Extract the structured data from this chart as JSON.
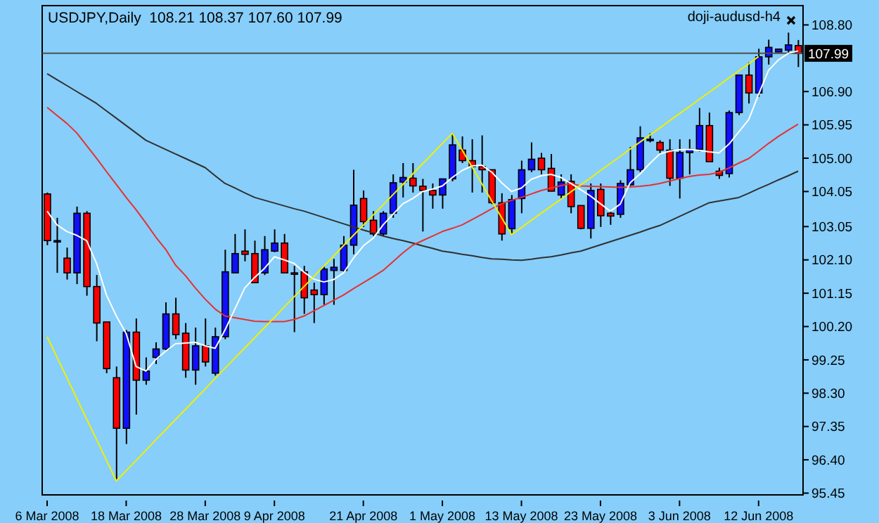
{
  "chart_data": {
    "type": "candlestick",
    "title": "USDJPY,Daily  108.21 108.37 107.60 107.99",
    "annotations": [
      "doji-audusd-h4"
    ],
    "categories": [
      "6 Mar 2008",
      null,
      null,
      null,
      null,
      null,
      null,
      null,
      "18 Mar 2008",
      null,
      null,
      null,
      null,
      null,
      null,
      null,
      "28 Mar 2008",
      null,
      null,
      null,
      null,
      null,
      null,
      "9 Apr 2008",
      null,
      null,
      null,
      null,
      null,
      null,
      null,
      null,
      "21 Apr 2008",
      null,
      null,
      null,
      null,
      null,
      null,
      null,
      "1 May 2008",
      null,
      null,
      null,
      null,
      null,
      null,
      null,
      "13 May 2008",
      null,
      null,
      null,
      null,
      null,
      null,
      null,
      "23 May 2008",
      null,
      null,
      null,
      null,
      null,
      null,
      null,
      "3 Jun 2008",
      null,
      null,
      null,
      null,
      null,
      null,
      null,
      "12 Jun 2008",
      null,
      null,
      null,
      null
    ],
    "ohlc": [
      [
        103.98,
        104.02,
        102.52,
        102.65
      ],
      [
        102.65,
        103.3,
        101.73,
        102.65
      ],
      [
        102.15,
        102.45,
        101.54,
        101.73
      ],
      [
        101.73,
        103.62,
        101.41,
        103.43
      ],
      [
        103.43,
        103.49,
        101.08,
        101.34
      ],
      [
        101.34,
        101.67,
        99.78,
        100.3
      ],
      [
        100.33,
        100.33,
        98.87,
        99.0
      ],
      [
        98.74,
        99.06,
        95.8,
        97.3
      ],
      [
        97.3,
        100.1,
        96.85,
        100.04
      ],
      [
        100.04,
        100.43,
        97.69,
        98.67
      ],
      [
        98.67,
        99.32,
        98.54,
        98.93
      ],
      [
        99.32,
        99.75,
        99.13,
        99.56
      ],
      [
        99.56,
        100.89,
        99.52,
        100.56
      ],
      [
        100.56,
        101.02,
        99.84,
        99.97
      ],
      [
        100.01,
        100.3,
        98.74,
        98.96
      ],
      [
        98.96,
        100.17,
        98.54,
        99.65
      ],
      [
        99.65,
        100.43,
        99.06,
        99.19
      ],
      [
        98.87,
        100.17,
        98.8,
        99.91
      ],
      [
        99.91,
        102.39,
        99.84,
        101.76
      ],
      [
        101.73,
        102.84,
        101.73,
        102.28
      ],
      [
        102.35,
        102.97,
        102.06,
        102.26
      ],
      [
        102.28,
        102.65,
        101.45,
        101.45
      ],
      [
        101.73,
        102.78,
        101.67,
        102.39
      ],
      [
        102.35,
        102.97,
        102.32,
        102.58
      ],
      [
        102.58,
        102.84,
        101.73,
        101.73
      ],
      [
        101.73,
        101.93,
        100.04,
        101.71
      ],
      [
        101.76,
        101.93,
        100.56,
        101.02
      ],
      [
        101.24,
        101.45,
        100.3,
        101.11
      ],
      [
        101.11,
        101.93,
        100.82,
        101.84
      ],
      [
        101.8,
        102.13,
        100.82,
        101.89
      ],
      [
        101.8,
        102.78,
        101.73,
        102.52
      ],
      [
        102.52,
        104.67,
        102.26,
        103.66
      ],
      [
        103.85,
        104.08,
        103.04,
        103.19
      ],
      [
        103.23,
        103.49,
        102.78,
        102.84
      ],
      [
        102.84,
        103.49,
        102.78,
        103.43
      ],
      [
        103.43,
        104.54,
        103.3,
        104.3
      ],
      [
        104.32,
        104.86,
        103.88,
        104.45
      ],
      [
        104.43,
        104.86,
        104.02,
        104.21
      ],
      [
        104.2,
        104.41,
        102.91,
        104.08
      ],
      [
        104.08,
        104.28,
        103.56,
        103.95
      ],
      [
        103.95,
        104.41,
        103.56,
        104.41
      ],
      [
        104.41,
        105.71,
        104.34,
        105.38
      ],
      [
        105.23,
        105.62,
        104.86,
        104.93
      ],
      [
        104.93,
        105.54,
        104.02,
        104.76
      ],
      [
        104.76,
        105.65,
        104.02,
        104.67
      ],
      [
        104.67,
        104.67,
        103.69,
        103.73
      ],
      [
        103.73,
        104.0,
        102.65,
        102.84
      ],
      [
        102.99,
        103.95,
        102.84,
        103.82
      ],
      [
        103.85,
        104.93,
        103.43,
        104.67
      ],
      [
        104.67,
        105.45,
        104.6,
        104.97
      ],
      [
        105.0,
        105.15,
        104.54,
        104.67
      ],
      [
        104.71,
        105.12,
        104.06,
        104.06
      ],
      [
        103.95,
        104.54,
        103.82,
        104.32
      ],
      [
        104.34,
        104.54,
        103.43,
        103.62
      ],
      [
        103.65,
        103.65,
        102.97,
        103.0
      ],
      [
        103.0,
        104.28,
        102.71,
        104.08
      ],
      [
        104.11,
        104.28,
        103.04,
        103.36
      ],
      [
        103.43,
        103.49,
        103.1,
        103.35
      ],
      [
        103.4,
        104.37,
        103.3,
        104.28
      ],
      [
        104.24,
        105.32,
        104.21,
        104.67
      ],
      [
        104.67,
        105.91,
        104.6,
        105.58
      ],
      [
        105.51,
        105.71,
        105.45,
        105.54
      ],
      [
        105.45,
        105.51,
        105.12,
        105.23
      ],
      [
        105.23,
        105.54,
        104.21,
        104.43
      ],
      [
        104.43,
        105.54,
        103.85,
        105.16
      ],
      [
        105.16,
        105.54,
        104.54,
        105.25
      ],
      [
        105.25,
        106.43,
        105.19,
        105.93
      ],
      [
        105.93,
        106.3,
        104.9,
        104.9
      ],
      [
        104.63,
        104.73,
        104.41,
        104.51
      ],
      [
        104.56,
        106.36,
        104.45,
        106.3
      ],
      [
        106.3,
        107.37,
        106.23,
        107.37
      ],
      [
        107.37,
        107.73,
        106.56,
        106.86
      ],
      [
        106.86,
        108.12,
        106.75,
        107.89
      ],
      [
        107.89,
        108.38,
        107.67,
        108.16
      ],
      [
        108.03,
        108.12,
        108.02,
        108.11
      ],
      [
        108.08,
        108.58,
        107.97,
        108.23
      ],
      [
        108.21,
        108.37,
        107.6,
        107.99
      ]
    ],
    "colors": [
      "#ff0000",
      "#1010ff",
      "#ff0000",
      "#1010ff",
      "#ff0000",
      "#ff0000",
      "#ff0000",
      "#ff0000",
      "#1010ff",
      "#ff0000",
      "#1010ff",
      "#1010ff",
      "#1010ff",
      "#ff0000",
      "#ff0000",
      "#1010ff",
      "#ff0000",
      "#1010ff",
      "#1010ff",
      "#1010ff",
      "#ff0000",
      "#ff0000",
      "#1010ff",
      "#1010ff",
      "#ff0000",
      "#ff0000",
      "#ff0000",
      "#ff0000",
      "#1010ff",
      "#1010ff",
      "#1010ff",
      "#1010ff",
      "#ff0000",
      "#ff0000",
      "#1010ff",
      "#1010ff",
      "#1010ff",
      "#ff0000",
      "#ff0000",
      "#ff0000",
      "#1010ff",
      "#1010ff",
      "#ff0000",
      "#ff0000",
      "#ff0000",
      "#ff0000",
      "#ff0000",
      "#1010ff",
      "#1010ff",
      "#1010ff",
      "#ff0000",
      "#ff0000",
      "#1010ff",
      "#ff0000",
      "#ff0000",
      "#1010ff",
      "#ff0000",
      "#ff0000",
      "#1010ff",
      "#1010ff",
      "#1010ff",
      "#1010ff",
      "#ff0000",
      "#ff0000",
      "#1010ff",
      "#1010ff",
      "#1010ff",
      "#ff0000",
      "#ff0000",
      "#1010ff",
      "#1010ff",
      "#ff0000",
      "#1010ff",
      "#1010ff",
      "#1010ff",
      "#1010ff",
      "#ff0000"
    ],
    "series": [
      {
        "type": "line",
        "color": "#303030",
        "values": [
          107.41,
          107.24,
          107.07,
          106.9,
          106.73,
          106.56,
          106.35,
          106.14,
          105.93,
          105.72,
          105.51,
          105.38,
          105.25,
          105.12,
          104.99,
          104.86,
          104.73,
          104.5,
          104.28,
          104.15,
          104.01,
          103.88,
          103.8,
          103.72,
          103.64,
          103.56,
          103.49,
          103.4,
          103.31,
          103.22,
          103.13,
          103.04,
          102.95,
          102.87,
          102.78,
          102.71,
          102.65,
          102.58,
          102.5,
          102.43,
          102.35,
          102.31,
          102.26,
          102.22,
          102.17,
          102.13,
          102.12,
          102.1,
          102.09,
          102.12,
          102.16,
          102.19,
          102.24,
          102.3,
          102.35,
          102.44,
          102.53,
          102.62,
          102.71,
          102.8,
          102.89,
          102.99,
          103.08,
          103.21,
          103.34,
          103.47,
          103.6,
          103.73,
          103.78,
          103.83,
          103.88,
          104.0,
          104.13,
          104.25,
          104.38,
          104.5,
          104.63
        ]
      },
      {
        "type": "line",
        "color": "#e83030",
        "values": [
          106.45,
          106.22,
          105.99,
          105.72,
          105.36,
          105.0,
          104.62,
          104.25,
          103.88,
          103.53,
          103.15,
          102.75,
          102.4,
          101.95,
          101.65,
          101.3,
          100.98,
          100.7,
          100.5,
          100.45,
          100.4,
          100.35,
          100.34,
          100.34,
          100.34,
          100.4,
          100.5,
          100.65,
          100.8,
          100.95,
          101.1,
          101.28,
          101.45,
          101.62,
          101.8,
          102.05,
          102.3,
          102.52,
          102.65,
          102.78,
          102.91,
          103.0,
          103.1,
          103.25,
          103.4,
          103.56,
          103.7,
          103.8,
          103.88,
          103.98,
          104.08,
          104.15,
          104.22,
          104.28,
          104.21,
          104.2,
          104.19,
          104.18,
          104.17,
          104.18,
          104.2,
          104.23,
          104.28,
          104.35,
          104.42,
          104.48,
          104.52,
          104.54,
          104.6,
          104.72,
          104.86,
          104.99,
          105.2,
          105.42,
          105.62,
          105.8,
          105.97
        ]
      },
      {
        "type": "line",
        "color": "#ffffff",
        "values": [
          103.49,
          103.1,
          102.91,
          102.8,
          102.65,
          102.0,
          101.1,
          100.5,
          100.0,
          99.06,
          98.93,
          99.26,
          99.5,
          99.71,
          99.73,
          99.75,
          99.65,
          99.58,
          100.1,
          100.7,
          101.3,
          101.6,
          101.86,
          102.19,
          102.1,
          102.0,
          101.75,
          101.55,
          101.47,
          101.54,
          101.73,
          102.15,
          102.5,
          102.72,
          103.1,
          103.4,
          103.7,
          103.85,
          104.05,
          104.12,
          104.21,
          104.45,
          104.65,
          104.78,
          104.8,
          104.6,
          104.3,
          104.05,
          104.15,
          104.4,
          104.5,
          104.54,
          104.45,
          104.28,
          104.1,
          103.92,
          103.7,
          103.49,
          103.69,
          104.3,
          104.55,
          104.85,
          105.12,
          105.2,
          105.24,
          105.25,
          105.22,
          105.18,
          105.15,
          105.4,
          105.75,
          106.1,
          106.82,
          107.5,
          107.8,
          107.99,
          108.06
        ]
      },
      {
        "type": "line",
        "color": "#f0f000",
        "values": [
          99.91,
          99.32,
          98.74,
          98.15,
          97.56,
          96.98,
          96.39,
          95.8,
          96.09,
          96.38,
          96.67,
          96.97,
          97.26,
          97.55,
          97.84,
          98.13,
          98.42,
          98.72,
          99.01,
          99.3,
          99.59,
          99.88,
          100.17,
          100.46,
          100.76,
          101.05,
          101.34,
          101.63,
          101.92,
          102.21,
          102.51,
          102.8,
          103.09,
          103.38,
          103.67,
          103.96,
          104.25,
          104.55,
          104.84,
          105.13,
          105.42,
          105.71,
          105.23,
          104.75,
          104.27,
          103.78,
          103.3,
          102.82,
          103.02,
          103.23,
          103.43,
          103.63,
          103.83,
          104.04,
          104.24,
          104.44,
          104.65,
          104.85,
          105.05,
          105.26,
          105.46,
          105.66,
          105.86,
          106.07,
          106.27,
          106.47,
          106.68,
          106.88,
          107.08,
          107.29,
          107.49,
          107.69,
          107.9,
          null,
          null,
          null,
          null
        ]
      }
    ],
    "ylim": [
      95.4,
      109.35
    ],
    "yticks": [
      95.45,
      {
        "value": 96.4,
        "label": "96.40"
      },
      97.35,
      {
        "value": 98.3,
        "label": "98.30"
      },
      99.25,
      {
        "value": 100.2,
        "label": "100.20"
      },
      101.15,
      {
        "value": 102.1,
        "label": "102.10"
      },
      103.05,
      104.05,
      {
        "value": 105,
        "label": "105.00"
      },
      105.95,
      {
        "value": 106.9,
        "label": "106.90"
      },
      {
        "value": 108.8,
        "label": "108.80"
      }
    ],
    "ref_lines": [
      {
        "axis": "y",
        "value": 107.99,
        "label": "107.99",
        "color": "#505050"
      }
    ],
    "marker": "none",
    "grid": false
  }
}
